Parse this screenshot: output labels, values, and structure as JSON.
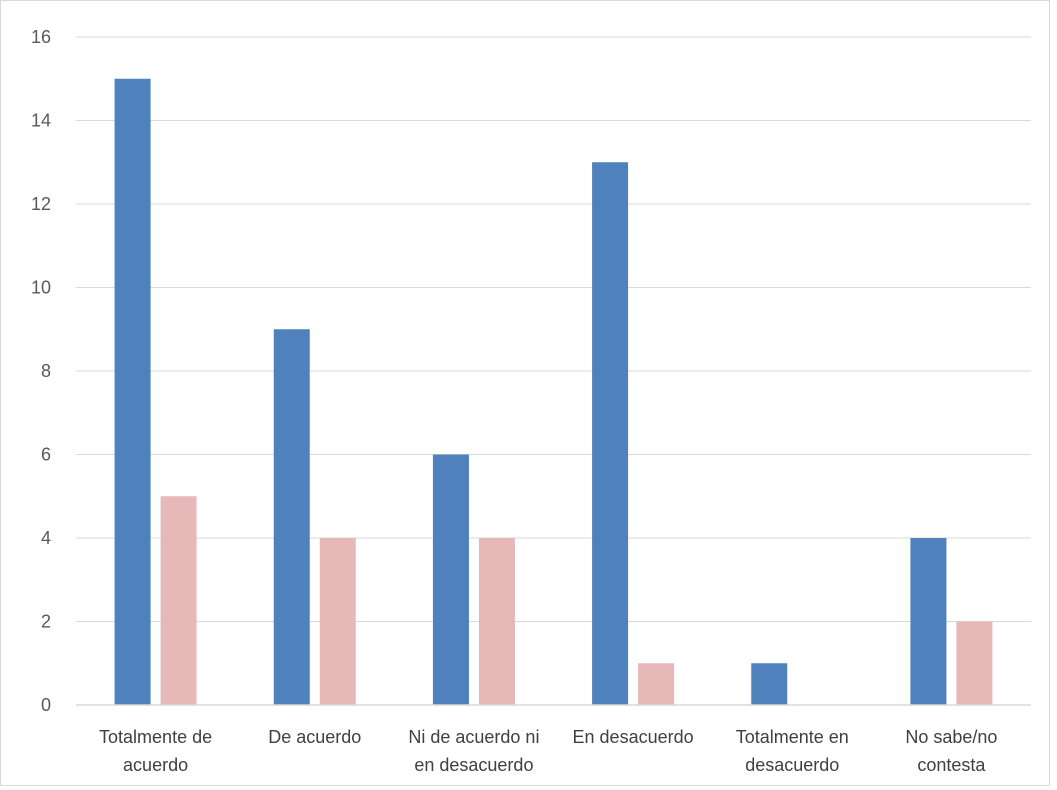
{
  "chart_data": {
    "type": "bar",
    "categories": [
      "Totalmente de acuerdo",
      "De acuerdo",
      "Ni de acuerdo ni en desacuerdo",
      "En desacuerdo",
      "Totalmente en desacuerdo",
      "No sabe/no contesta"
    ],
    "category_label_lines": [
      [
        "Totalmente de",
        "acuerdo"
      ],
      [
        "De acuerdo"
      ],
      [
        "Ni de acuerdo ni",
        "en desacuerdo"
      ],
      [
        "En desacuerdo"
      ],
      [
        "Totalmente en",
        "desacuerdo"
      ],
      [
        "No sabe/no",
        "contesta"
      ]
    ],
    "series": [
      {
        "values": [
          15,
          9,
          6,
          13,
          1,
          4
        ],
        "color": "#4f81bd"
      },
      {
        "values": [
          5,
          4,
          4,
          1,
          0,
          2
        ],
        "color": "#e6b9b8"
      }
    ],
    "yticks": [
      "0",
      "2",
      "4",
      "6",
      "8",
      "10",
      "12",
      "14",
      "16"
    ],
    "ylim": [
      0,
      16
    ],
    "title": "",
    "xlabel": "",
    "ylabel": "",
    "grid": true,
    "legend": "none",
    "colors": {
      "grid": "#d9d9d9",
      "axis": "#d9d9d9",
      "tick_text": "#595959"
    }
  }
}
